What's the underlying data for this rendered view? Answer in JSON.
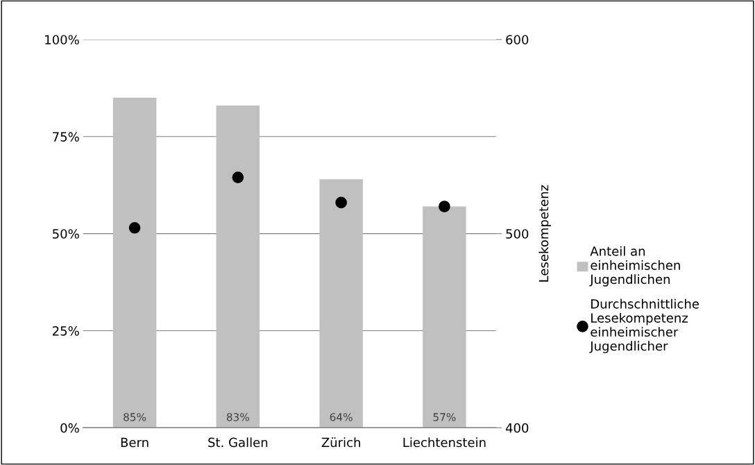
{
  "chart_data": {
    "type": "bar",
    "categories": [
      "Bern",
      "St. Gallen",
      "Zürich",
      "Liechtenstein"
    ],
    "series": [
      {
        "name": "Anteil an\neinheimischen\nJugendlichen",
        "color": "#c0c0c0",
        "values": [
          85,
          83,
          64,
          57
        ],
        "value_labels": [
          "85%",
          "83%",
          "64%",
          "57%"
        ]
      },
      {
        "name": "Durchschnittliche\nLesekompetenz\neinheimischer\nJugendlicher",
        "type": "scatter",
        "axis": "y2",
        "color": "#000000",
        "marker": "circle",
        "values": [
          503,
          529,
          516,
          514
        ]
      }
    ],
    "ylim": [
      0,
      100
    ],
    "yticks": [
      {
        "value": 0,
        "label": "0%"
      },
      {
        "value": 25,
        "label": "25%"
      },
      {
        "value": 50,
        "label": "50%"
      },
      {
        "value": 75,
        "label": "75%"
      },
      {
        "value": 100,
        "label": "100%"
      }
    ],
    "y2lim": [
      400,
      600
    ],
    "y2ticks": [
      400,
      500,
      600
    ],
    "y2label": "Lesekompetenz",
    "grid": "y",
    "legend": "right"
  }
}
